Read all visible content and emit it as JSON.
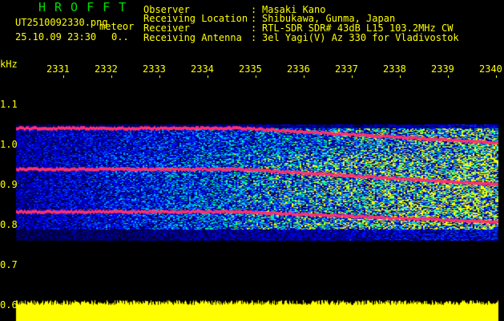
{
  "header": {
    "title": "HROFFT",
    "filename": "UT2510092330.png",
    "mode": "meteor",
    "datetime": "25.10.09 23:30",
    "extra": "0..",
    "fields": [
      {
        "label": "Observer",
        "value": "Masaki Kano"
      },
      {
        "label": "Receiving Location",
        "value": "Shibukawa, Gunma, Japan"
      },
      {
        "label": "Receiver",
        "value": "RTL-SDR SDR# 43dB L15 103.2MHz CW"
      },
      {
        "label": "Receiving Antenna",
        "value": "3el Yagi(V) Az 330 for Vladivostok"
      }
    ]
  },
  "axes": {
    "y_unit": "kHz",
    "y_ticks": [
      "1.1",
      "1.0",
      "0.9",
      "0.8",
      "0.7",
      "0.6"
    ],
    "x_ticks": [
      "2331",
      "2332",
      "2333",
      "2334",
      "2335",
      "2336",
      "2337",
      "2338",
      "2339",
      "2340"
    ]
  },
  "colors": {
    "text": "#ffff00",
    "title": "#00e000",
    "background": "#000000",
    "echo_line": "#ff3070"
  }
}
